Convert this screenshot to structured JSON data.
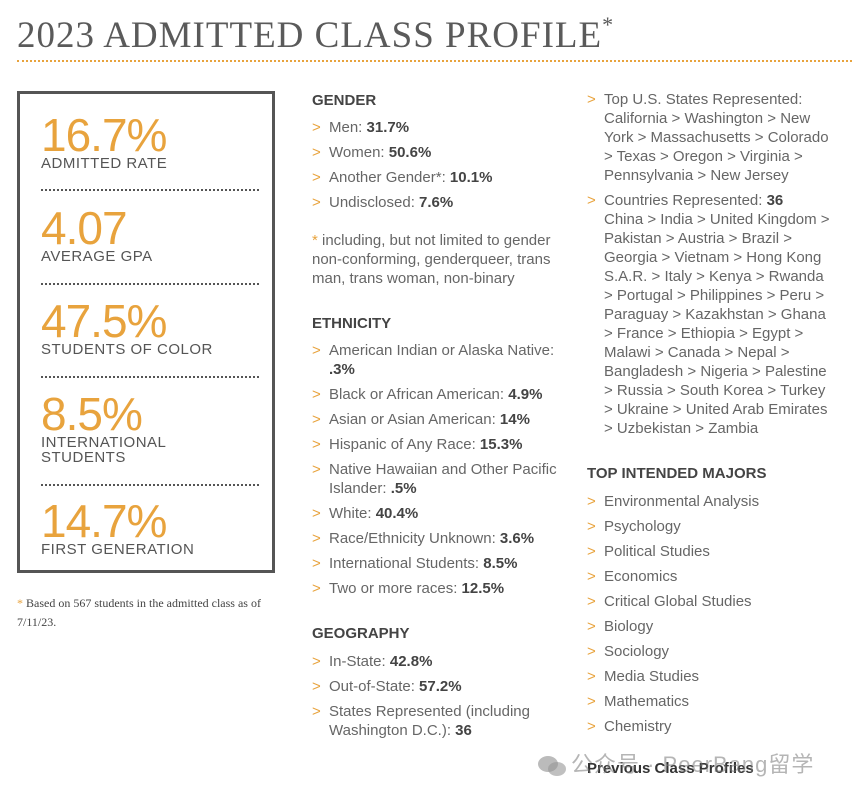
{
  "title": "2023 ADMITTED CLASS PROFILE",
  "title_mark": "*",
  "stats": [
    {
      "value": "16.7%",
      "label": "ADMITTED RATE"
    },
    {
      "value": "4.07",
      "label": "AVERAGE GPA"
    },
    {
      "value": "47.5%",
      "label": "STUDENTS OF COLOR"
    },
    {
      "value": "8.5%",
      "label": "INTERNATIONAL STUDENTS"
    },
    {
      "value": "14.7%",
      "label": "FIRST GENERATION"
    }
  ],
  "footnote": {
    "mark": "*",
    "text": "Based on 567 students in the admitted class as of 7/11/23."
  },
  "gender": {
    "heading": "GENDER",
    "items": [
      {
        "label": "Men: ",
        "value": "31.7%"
      },
      {
        "label": "Women: ",
        "value": "50.6%"
      },
      {
        "label": "Another Gender*: ",
        "value": "10.1%"
      },
      {
        "label": "Undisclosed: ",
        "value": "7.6%"
      }
    ],
    "note_mark": "*",
    "note": " including, but not limited to gender non-conforming, genderqueer, trans man, trans woman, non-binary"
  },
  "ethnicity": {
    "heading": "ETHNICITY",
    "items": [
      {
        "label": "American Indian or Alaska Native: ",
        "value": ".3%"
      },
      {
        "label": "Black or African American: ",
        "value": "4.9%"
      },
      {
        "label": "Asian or Asian American: ",
        "value": "14%"
      },
      {
        "label": "Hispanic of Any Race: ",
        "value": "15.3%"
      },
      {
        "label": "Native Hawaiian and Other Pacific Islander: ",
        "value": ".5%"
      },
      {
        "label": "White: ",
        "value": "40.4%"
      },
      {
        "label": "Race/Ethnicity Unknown: ",
        "value": "3.6%"
      },
      {
        "label": "International Students: ",
        "value": "8.5%"
      },
      {
        "label": "Two or more races: ",
        "value": "12.5%"
      }
    ]
  },
  "geography": {
    "heading": "GEOGRAPHY",
    "items": [
      {
        "label": "In-State: ",
        "value": "42.8%"
      },
      {
        "label": "Out-of-State: ",
        "value": "57.2%"
      },
      {
        "label": "States Represented (including Washington D.C.): ",
        "value": "36"
      }
    ]
  },
  "top_states": {
    "label": "Top U.S. States Represented:",
    "list": "California > Washington > New York > Massachusetts > Colorado > Texas > Oregon > Virginia > Pennsylvania > New Jersey"
  },
  "countries": {
    "label": "Countries Represented: ",
    "count": "36",
    "list": "China > India > United Kingdom > Pakistan > Austria > Brazil > Georgia > Vietnam > Hong Kong S.A.R. > Italy > Kenya > Rwanda > Portugal > Philippines > Peru > Paraguay > Kazakhstan > Ghana > France > Ethiopia > Egypt > Malawi > Canada > Nepal > Bangladesh > Nigeria > Palestine > Russia > South Korea > Turkey > Ukraine > United Arab Emirates > Uzbekistan > Zambia"
  },
  "majors": {
    "heading": "TOP INTENDED MAJORS",
    "items": [
      "Environmental Analysis",
      "Psychology",
      "Political Studies",
      "Economics",
      "Critical Global Studies",
      "Biology",
      "Sociology",
      "Media Studies",
      "Mathematics",
      "Chemistry"
    ]
  },
  "previous_link": "Previous Class Profiles",
  "watermark": "公众号 · PeerBang留学",
  "colors": {
    "accent": "#e8a33d",
    "text": "#555555",
    "border": "#555555"
  }
}
